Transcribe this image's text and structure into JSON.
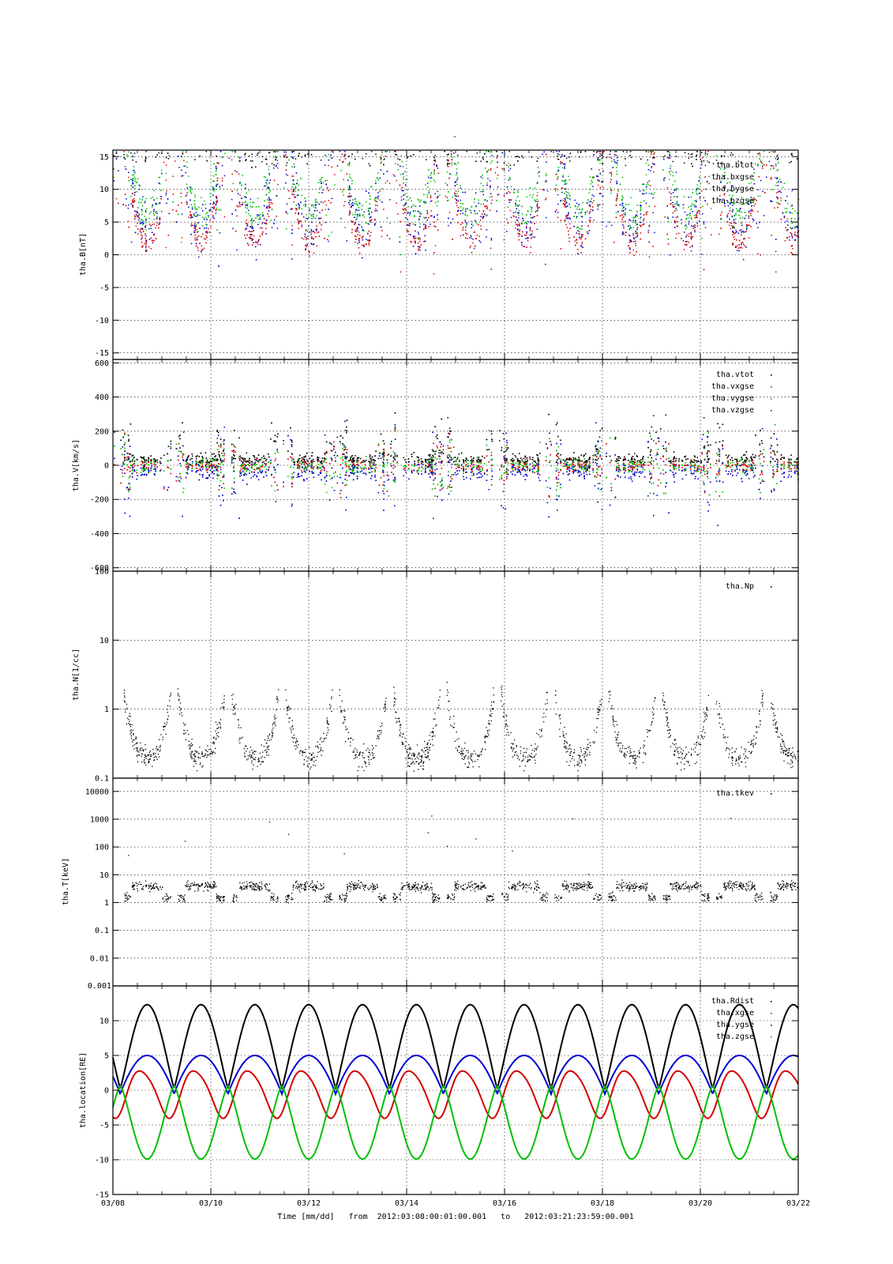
{
  "title": "-",
  "footer": {
    "xlabel": "Time [mm/dd]",
    "from_label": "from",
    "from_value": "2012:03:08:00:01:00.001",
    "to_label": "to",
    "to_value": "2012:03:21:23:59:00.001"
  },
  "colors": {
    "black": "#000000",
    "red": "#d40000",
    "green": "#00c000",
    "blue": "#0000d0"
  },
  "chart_data": [
    {
      "type": "scatter",
      "id": "bfield",
      "ylabel": "tha.B[nT]",
      "ylim": [
        -16,
        16
      ],
      "yticks": [
        -15,
        -10,
        -5,
        0,
        5,
        10,
        15
      ],
      "ytick_labels": [
        "-15",
        "-10",
        "-5",
        "0",
        "5",
        "10",
        "15"
      ],
      "log": false,
      "legend_position": "top-right",
      "series": [
        {
          "name": "tha.btot",
          "color": "#000000"
        },
        {
          "name": "tha.bxgse",
          "color": "#d40000"
        },
        {
          "name": "tha.bygse",
          "color": "#00c000"
        },
        {
          "name": "tha.bzgse",
          "color": "#0000d0"
        }
      ]
    },
    {
      "type": "scatter",
      "id": "velocity",
      "ylabel": "tha.V[km/s]",
      "ylim": [
        -620,
        620
      ],
      "yticks": [
        -600,
        -400,
        -200,
        0,
        200,
        400,
        600
      ],
      "ytick_labels": [
        "-600",
        "-400",
        "-200",
        "0",
        "200",
        "400",
        "600"
      ],
      "log": false,
      "legend_position": "top-right",
      "series": [
        {
          "name": "tha.vtot",
          "color": "#000000"
        },
        {
          "name": "tha.vxgse",
          "color": "#d40000"
        },
        {
          "name": "tha.vygse",
          "color": "#00c000"
        },
        {
          "name": "tha.vzgse",
          "color": "#0000d0"
        }
      ]
    },
    {
      "type": "scatter",
      "id": "density",
      "ylabel": "tha.N[1/cc]",
      "ylim": [
        0.1,
        100
      ],
      "yticks": [
        0.1,
        1,
        10,
        100
      ],
      "ytick_labels": [
        "0.1",
        "1",
        "10",
        "100"
      ],
      "log": true,
      "legend_position": "top-right",
      "series": [
        {
          "name": "tha.Np",
          "color": "#000000"
        }
      ]
    },
    {
      "type": "scatter",
      "id": "temperature",
      "ylabel": "tha.T[keV]",
      "ylim": [
        0.001,
        30000
      ],
      "yticks": [
        0.01,
        0.1,
        1,
        10,
        100,
        1000,
        10000
      ],
      "ytick_labels": [
        "0.01",
        "0.1",
        "1",
        "10",
        "100",
        "1000",
        "10000"
      ],
      "bottom_label": "0.001",
      "log": true,
      "legend_position": "top-right",
      "series": [
        {
          "name": "tha.tkev",
          "color": "#000000"
        }
      ]
    },
    {
      "type": "line",
      "id": "location",
      "ylabel": "tha.location[RE]",
      "ylim": [
        -15,
        15
      ],
      "yticks": [
        -15,
        -10,
        -5,
        0,
        5,
        10
      ],
      "ytick_labels": [
        "-15",
        "-10",
        "-5",
        "0",
        "5",
        "10"
      ],
      "log": false,
      "legend_position": "top-right",
      "orbit_period_days": 1.1,
      "series": [
        {
          "name": "tha.Rdist",
          "color": "#000000",
          "max": 12,
          "min": 0
        },
        {
          "name": "tha.xgse",
          "color": "#d40000",
          "max": 4.2,
          "min": -4.2
        },
        {
          "name": "tha.ygse",
          "color": "#0000d0",
          "max": 5.6,
          "min": -0.8
        },
        {
          "name": "tha.zgse",
          "color": "#00c000",
          "max": 0,
          "min": -10.5
        }
      ]
    }
  ],
  "x_axis": {
    "range_days": [
      0,
      14
    ],
    "tick_days": [
      0,
      2,
      4,
      6,
      8,
      10,
      12,
      14
    ],
    "tick_labels": [
      "03/08",
      "03/10",
      "03/12",
      "03/14",
      "03/16",
      "03/18",
      "03/20",
      "03/22"
    ]
  }
}
